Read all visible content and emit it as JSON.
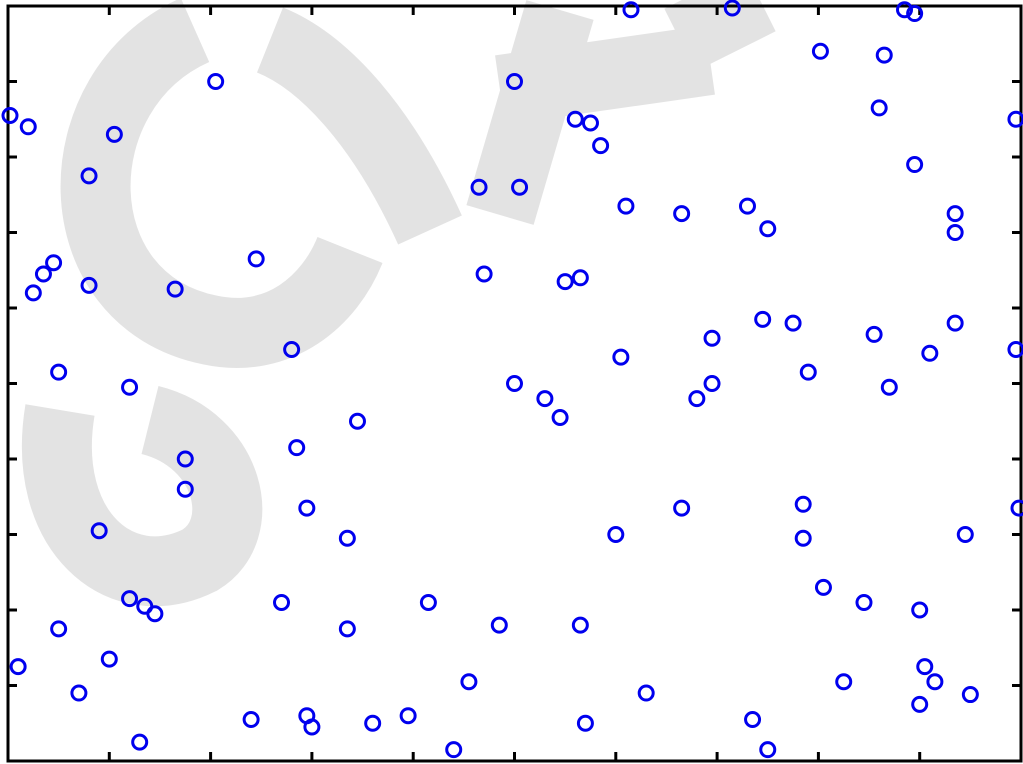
{
  "colors": {
    "marker": "#0000ee",
    "axis": "#000000",
    "watermark": "#dcdcdc",
    "background": "#ffffff"
  },
  "watermark": {
    "visible": true,
    "letters": "GCIF"
  },
  "chart_data": {
    "type": "scatter",
    "title": "",
    "xlabel": "",
    "ylabel": "",
    "grid": false,
    "legend": "none",
    "marker": "open-circle",
    "xlim": [
      0,
      10
    ],
    "ylim": [
      0,
      10
    ],
    "xticks": [
      1,
      2,
      3,
      4,
      5,
      6,
      7,
      8,
      9
    ],
    "yticks": [
      1,
      2,
      3,
      4,
      5,
      6,
      7,
      8,
      9
    ],
    "tick_labels_shown": false,
    "series": [
      {
        "x": [
          6.15,
          7.15,
          8.85,
          8.95,
          8.02,
          8.65,
          2.05,
          5.0,
          8.6,
          0.0,
          0.2,
          5.6,
          5.75,
          1.05,
          5.85,
          0.8,
          9.95,
          8.95,
          4.65,
          5.05,
          6.1,
          6.65,
          7.5,
          7.3,
          9.35,
          9.35,
          2.45,
          4.7,
          0.45,
          0.35,
          0.25,
          0.8,
          1.65,
          5.5,
          5.65,
          7.45,
          7.75,
          6.95,
          8.55,
          2.8,
          9.95,
          9.1,
          0.5,
          6.05,
          7.9,
          9.35,
          6.95,
          1.2,
          8.7,
          5.0,
          5.3,
          5.45,
          6.8,
          3.45,
          2.85,
          1.75,
          1.75,
          0.9,
          2.95,
          3.35,
          6.65,
          7.85,
          7.85,
          6.0,
          9.45,
          10.0,
          8.05,
          1.2,
          1.35,
          1.45,
          2.7,
          4.15,
          8.45,
          9.0,
          0.5,
          3.35,
          4.85,
          5.65,
          0.1,
          1.0,
          9.05,
          9.15,
          4.55,
          0.7,
          8.25,
          6.3,
          9.5,
          2.4,
          3.0,
          2.95,
          3.95,
          3.6,
          5.7,
          7.35,
          9.0,
          1.3,
          7.5,
          4.4
        ],
        "y": [
          9.95,
          10.0,
          9.95,
          9.9,
          9.4,
          9.35,
          9.0,
          9.0,
          8.65,
          8.55,
          8.4,
          8.5,
          8.45,
          8.3,
          8.15,
          7.75,
          8.5,
          7.9,
          7.6,
          7.6,
          7.35,
          7.25,
          7.05,
          7.35,
          7.25,
          7.0,
          6.65,
          6.45,
          6.6,
          6.45,
          6.2,
          6.3,
          6.25,
          6.35,
          6.4,
          5.85,
          5.8,
          5.6,
          5.65,
          5.45,
          5.45,
          5.4,
          5.15,
          5.35,
          5.15,
          5.8,
          5.0,
          4.95,
          4.95,
          5.0,
          4.8,
          4.55,
          4.8,
          4.5,
          4.15,
          4.0,
          3.6,
          3.05,
          3.35,
          2.95,
          3.35,
          3.4,
          2.95,
          3.0,
          3.0,
          3.35,
          2.3,
          2.15,
          2.05,
          1.95,
          2.1,
          2.1,
          2.1,
          2.0,
          1.75,
          1.75,
          1.8,
          1.8,
          1.25,
          1.35,
          1.25,
          1.05,
          1.05,
          0.9,
          1.05,
          0.9,
          0.88,
          0.55,
          0.45,
          0.6,
          0.6,
          0.5,
          0.5,
          0.55,
          0.75,
          0.25,
          0.15,
          0.15
        ]
      }
    ]
  }
}
